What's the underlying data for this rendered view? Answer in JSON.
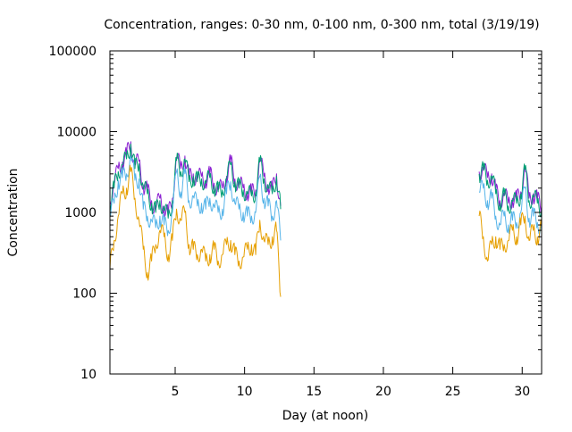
{
  "chart_data": {
    "type": "line",
    "title": "Concentration, ranges: 0-30 nm, 0-100 nm, 0-300 nm, total (3/19/19)",
    "xlabel": "Day (at noon)",
    "ylabel": "Concentration",
    "xlim": [
      0.3,
      31.4
    ],
    "ylim": [
      10,
      100000
    ],
    "yscale": "log",
    "grid": false,
    "legend": "none",
    "x_ticks": [
      5,
      10,
      15,
      20,
      25,
      30
    ],
    "x_tick_labels": [
      "5",
      "10",
      "15",
      "20",
      "25",
      "30"
    ],
    "y_ticks": [
      10,
      100,
      1000,
      10000,
      100000
    ],
    "y_tick_labels": [
      "10",
      "100",
      "1000",
      "10000",
      "100000"
    ],
    "series": [
      {
        "color": "#8b20d2",
        "segments": [
          {
            "x": [
              0.3,
              0.6,
              0.9,
              1.2,
              1.5,
              1.8,
              2.1,
              2.4,
              2.7,
              3.0,
              3.3,
              3.6,
              3.9,
              4.2,
              4.5,
              4.8,
              5.1,
              5.4,
              5.7,
              6.0,
              6.3,
              6.6,
              6.9,
              7.2,
              7.5,
              7.8,
              8.1,
              8.4,
              8.7,
              9.0,
              9.3,
              9.6,
              9.9,
              10.2,
              10.5,
              10.8,
              11.1,
              11.4,
              11.7,
              12.0,
              12.3,
              12.6
            ],
            "y": [
              1400,
              2200,
              3500,
              4200,
              5000,
              7500,
              3800,
              4300,
              2200,
              1800,
              1400,
              1100,
              1500,
              1200,
              900,
              1500,
              4800,
              3500,
              5000,
              2600,
              3000,
              2600,
              2800,
              2500,
              2900,
              2300,
              1900,
              2000,
              2800,
              4200,
              2600,
              2200,
              2000,
              1800,
              1700,
              1900,
              4500,
              2800,
              2200,
              1800,
              3000,
              1200
            ]
          },
          {
            "x": [
              26.9,
              27.2,
              27.5,
              27.8,
              28.1,
              28.4,
              28.7,
              29.0,
              29.3,
              29.6,
              29.9,
              30.2,
              30.5,
              30.8,
              31.1,
              31.4
            ],
            "y": [
              3200,
              3500,
              2700,
              3000,
              1800,
              1400,
              1700,
              1300,
              1500,
              1400,
              1800,
              3600,
              1500,
              1700,
              1400,
              1200
            ]
          }
        ]
      },
      {
        "color": "#009e73",
        "segments": [
          {
            "x": [
              0.3,
              0.6,
              0.9,
              1.2,
              1.5,
              1.8,
              2.1,
              2.4,
              2.7,
              3.0,
              3.3,
              3.6,
              3.9,
              4.2,
              4.5,
              4.8,
              5.1,
              5.4,
              5.7,
              6.0,
              6.3,
              6.6,
              6.9,
              7.2,
              7.5,
              7.8,
              8.1,
              8.4,
              8.7,
              9.0,
              9.3,
              9.6,
              9.9,
              10.2,
              10.5,
              10.8,
              11.1,
              11.4,
              11.7,
              12.0,
              12.3,
              12.6
            ],
            "y": [
              1300,
              2000,
              3200,
              3900,
              4600,
              7000,
              3500,
              4000,
              2000,
              1700,
              1300,
              1000,
              1400,
              1100,
              850,
              1400,
              4400,
              3200,
              4600,
              2400,
              2800,
              2400,
              2600,
              2300,
              2700,
              2100,
              1800,
              1900,
              2600,
              3900,
              2400,
              2000,
              1900,
              1700,
              1600,
              1800,
              4200,
              2600,
              2000,
              1700,
              2800,
              1100
            ]
          },
          {
            "x": [
              26.9,
              27.2,
              27.5,
              27.8,
              28.1,
              28.4,
              28.7,
              29.0,
              29.3,
              29.6,
              29.9,
              30.2,
              30.5,
              30.8,
              31.1,
              31.4
            ],
            "y": [
              3000,
              3300,
              2500,
              2800,
              1700,
              1300,
              1600,
              1200,
              1400,
              1300,
              1700,
              3400,
              1400,
              1600,
              1300,
              1100
            ]
          }
        ]
      },
      {
        "color": "#56b4e9",
        "segments": [
          {
            "x": [
              0.3,
              0.6,
              0.9,
              1.2,
              1.5,
              1.8,
              2.1,
              2.4,
              2.7,
              3.0,
              3.3,
              3.6,
              3.9,
              4.2,
              4.5,
              4.8,
              5.1,
              5.4,
              5.7,
              6.0,
              6.3,
              6.6,
              6.9,
              7.2,
              7.5,
              7.8,
              8.1,
              8.4,
              8.7,
              9.0,
              9.3,
              9.6,
              9.9,
              10.2,
              10.5,
              10.8,
              11.1,
              11.4,
              11.7,
              12.0,
              12.3,
              12.6
            ],
            "y": [
              900,
              1300,
              2500,
              2700,
              3000,
              5000,
              2500,
              2600,
              1100,
              900,
              800,
              650,
              900,
              700,
              600,
              1000,
              3200,
              1800,
              3000,
              1400,
              1600,
              1200,
              1300,
              1100,
              1500,
              1200,
              1000,
              1100,
              1700,
              2400,
              1300,
              1100,
              1000,
              900,
              900,
              1000,
              2800,
              1500,
              1200,
              900,
              1400,
              450
            ]
          },
          {
            "x": [
              26.9,
              27.2,
              27.5,
              27.8,
              28.1,
              28.4,
              28.7,
              29.0,
              29.3,
              29.6,
              29.9,
              30.2,
              30.5,
              30.8,
              31.1,
              31.4
            ],
            "y": [
              1800,
              2000,
              1400,
              1500,
              900,
              700,
              900,
              700,
              800,
              750,
              1000,
              2000,
              850,
              900,
              750,
              650
            ]
          }
        ]
      },
      {
        "color": "#e69f00",
        "segments": [
          {
            "x": [
              0.3,
              0.6,
              0.9,
              1.2,
              1.5,
              1.8,
              2.1,
              2.4,
              2.7,
              3.0,
              3.3,
              3.6,
              3.9,
              4.2,
              4.5,
              4.8,
              5.1,
              5.4,
              5.7,
              6.0,
              6.3,
              6.6,
              6.9,
              7.2,
              7.5,
              7.8,
              8.1,
              8.4,
              8.7,
              9.0,
              9.3,
              9.6,
              9.9,
              10.2,
              10.5,
              10.8,
              11.1,
              11.4,
              11.7,
              12.0,
              12.3,
              12.6
            ],
            "y": [
              200,
              450,
              900,
              1700,
              2000,
              3200,
              1500,
              800,
              350,
              180,
              250,
              400,
              600,
              500,
              300,
              450,
              1100,
              800,
              1000,
              400,
              350,
              300,
              350,
              250,
              300,
              350,
              250,
              300,
              400,
              450,
              300,
              250,
              280,
              350,
              400,
              300,
              800,
              450,
              400,
              500,
              600,
              90
            ]
          },
          {
            "x": [
              26.9,
              27.2,
              27.5,
              27.8,
              28.1,
              28.4,
              28.7,
              29.0,
              29.3,
              29.6,
              29.9,
              30.2,
              30.5,
              30.8,
              31.1,
              31.4
            ],
            "y": [
              900,
              500,
              250,
              400,
              500,
              350,
              400,
              450,
              600,
              500,
              700,
              900,
              450,
              600,
              500,
              650
            ]
          }
        ]
      }
    ]
  }
}
